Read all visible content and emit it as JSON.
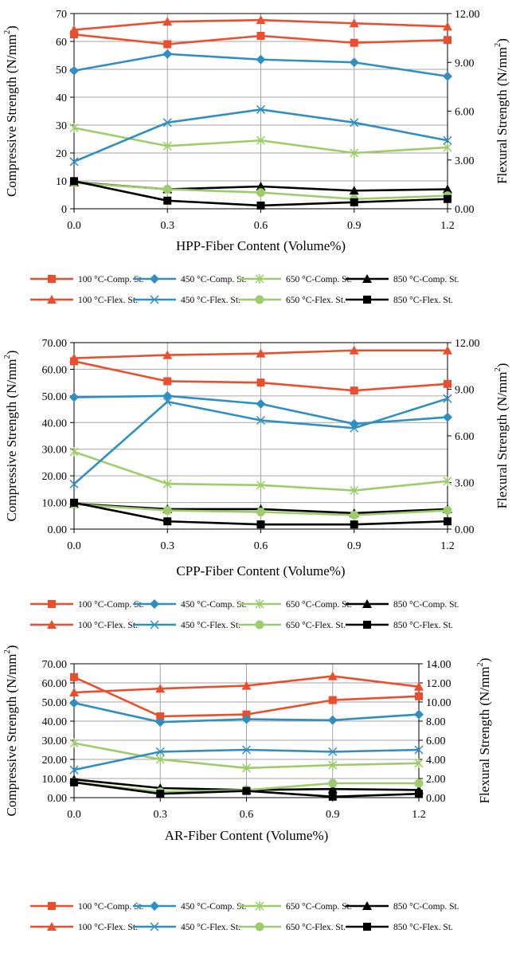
{
  "colors": {
    "c100": "#ea4f2d",
    "c450": "#2f8fc1",
    "c650": "#9dcc6b",
    "c850": "#000000",
    "grid": "#a6a6a6",
    "frame": "#000000"
  },
  "chart_data": [
    {
      "type": "line",
      "x": [
        0.0,
        0.3,
        0.6,
        0.9,
        1.2
      ],
      "x_tick_labels": [
        "0.0",
        "0.3",
        "0.6",
        "0.9",
        "1.2"
      ],
      "xlabel": "HPP-Fiber Content (Volume%)",
      "ylabel_left": "Compressive Strength (N/mm",
      "ylabel_right": "Flexural Strength (N/mm",
      "ylabel_sup": "2",
      "ylabel_close": ")",
      "ylim_left": [
        0,
        70
      ],
      "ylim_right": [
        0,
        12
      ],
      "y_left_ticks": [
        "0",
        "10",
        "20",
        "30",
        "40",
        "50",
        "60",
        "70"
      ],
      "y_right_ticks": [
        "0.00",
        "3.00",
        "6.00",
        "9.00",
        "12.00"
      ],
      "grid": true,
      "series": [
        {
          "name": "100 °C-Comp. St.",
          "axis": "left",
          "color": "c100",
          "marker": "square",
          "values": [
            62.5,
            59.0,
            62.0,
            59.5,
            60.5
          ]
        },
        {
          "name": "450 °C-Comp. St.",
          "axis": "left",
          "color": "c450",
          "marker": "diamond",
          "values": [
            49.5,
            55.5,
            53.5,
            52.5,
            47.5
          ]
        },
        {
          "name": "650 °C-Comp. St.",
          "axis": "left",
          "color": "c650",
          "marker": "asterisk",
          "values": [
            29.0,
            22.5,
            24.5,
            20.0,
            22.0
          ]
        },
        {
          "name": "850 °C-Comp. St.",
          "axis": "left",
          "color": "c850",
          "marker": "triangle",
          "values": [
            9.5,
            7.0,
            8.0,
            6.5,
            7.0
          ]
        },
        {
          "name": "100 °C-Flex. St.",
          "axis": "right",
          "color": "c100",
          "marker": "triangle",
          "values": [
            11.0,
            11.5,
            11.6,
            11.4,
            11.2
          ]
        },
        {
          "name": "450 °C-Flex. St.",
          "axis": "right",
          "color": "c450",
          "marker": "x",
          "values": [
            2.9,
            5.3,
            6.1,
            5.3,
            4.2
          ]
        },
        {
          "name": "650 °C-Flex. St.",
          "axis": "right",
          "color": "c650",
          "marker": "circle",
          "values": [
            1.6,
            1.2,
            1.0,
            0.6,
            0.8
          ]
        },
        {
          "name": "850 °C-Flex. St.",
          "axis": "right",
          "color": "c850",
          "marker": "square",
          "values": [
            1.7,
            0.5,
            0.2,
            0.4,
            0.6
          ]
        }
      ]
    },
    {
      "type": "line",
      "x": [
        0.0,
        0.3,
        0.6,
        0.9,
        1.2
      ],
      "x_tick_labels": [
        "0.0",
        "0.3",
        "0.6",
        "0.9",
        "1.2"
      ],
      "xlabel": "CPP-Fiber Content (Volume%)",
      "ylabel_left": "Compressive Strength (N/mm",
      "ylabel_right": "Flexural Strength (N/mm",
      "ylabel_sup": "2",
      "ylabel_close": ")",
      "ylim_left": [
        0,
        70
      ],
      "ylim_right": [
        0,
        12
      ],
      "y_left_ticks": [
        "0.00",
        "10.00",
        "20.00",
        "30.00",
        "40.00",
        "50.00",
        "60.00",
        "70.00"
      ],
      "y_right_ticks": [
        "0.00",
        "3.00",
        "6.00",
        "9.00",
        "12.00"
      ],
      "grid": true,
      "series": [
        {
          "name": "100 °C-Comp. St.",
          "axis": "left",
          "color": "c100",
          "marker": "square",
          "values": [
            63.0,
            55.5,
            55.0,
            52.0,
            54.5
          ]
        },
        {
          "name": "450 °C-Comp. St.",
          "axis": "left",
          "color": "c450",
          "marker": "diamond",
          "values": [
            49.5,
            50.0,
            47.0,
            39.5,
            42.0
          ]
        },
        {
          "name": "650 °C-Comp. St.",
          "axis": "left",
          "color": "c650",
          "marker": "asterisk",
          "values": [
            29.0,
            17.0,
            16.5,
            14.5,
            18.0
          ]
        },
        {
          "name": "850 °C-Comp. St.",
          "axis": "left",
          "color": "c850",
          "marker": "triangle",
          "values": [
            9.5,
            7.5,
            7.5,
            6.0,
            7.5
          ]
        },
        {
          "name": "100 °C-Flex. St.",
          "axis": "right",
          "color": "c100",
          "marker": "triangle",
          "values": [
            11.0,
            11.2,
            11.3,
            11.5,
            11.5
          ]
        },
        {
          "name": "450 °C-Flex. St.",
          "axis": "right",
          "color": "c450",
          "marker": "x",
          "values": [
            2.9,
            8.2,
            7.0,
            6.5,
            8.4
          ]
        },
        {
          "name": "650 °C-Flex. St.",
          "axis": "right",
          "color": "c650",
          "marker": "circle",
          "values": [
            1.6,
            1.2,
            1.1,
            0.9,
            1.2
          ]
        },
        {
          "name": "850 °C-Flex. St.",
          "axis": "right",
          "color": "c850",
          "marker": "square",
          "values": [
            1.7,
            0.5,
            0.3,
            0.3,
            0.5
          ]
        }
      ]
    },
    {
      "type": "line",
      "x": [
        0.0,
        0.3,
        0.6,
        0.9,
        1.2
      ],
      "x_tick_labels": [
        "0.0",
        "0.3",
        "0.6",
        "0.9",
        "1.2"
      ],
      "xlabel": "AR-Fiber Content (Volume%)",
      "ylabel_left": "Compressive Strength (N/mm",
      "ylabel_right": "Flexural Strength (N/mm",
      "ylabel_sup": "2",
      "ylabel_close": ")",
      "ylim_left": [
        0,
        70
      ],
      "ylim_right": [
        0,
        14
      ],
      "y_left_ticks": [
        "0.00",
        "10.00",
        "20.00",
        "30.00",
        "40.00",
        "50.00",
        "60.00",
        "70.00"
      ],
      "y_right_ticks": [
        "0.00",
        "2.00",
        "4.00",
        "6.00",
        "8.00",
        "10.00",
        "12.00",
        "14.00"
      ],
      "grid": true,
      "series": [
        {
          "name": "100 °C-Comp. St.",
          "axis": "left",
          "color": "c100",
          "marker": "square",
          "values": [
            63.0,
            42.5,
            43.5,
            51.0,
            53.0
          ]
        },
        {
          "name": "450 °C-Comp. St.",
          "axis": "left",
          "color": "c450",
          "marker": "diamond",
          "values": [
            49.5,
            39.5,
            41.0,
            40.5,
            43.5
          ]
        },
        {
          "name": "650 °C-Comp. St.",
          "axis": "left",
          "color": "c650",
          "marker": "asterisk",
          "values": [
            28.5,
            20.0,
            15.5,
            17.0,
            18.0
          ]
        },
        {
          "name": "850 °C-Comp. St.",
          "axis": "left",
          "color": "c850",
          "marker": "triangle",
          "values": [
            9.5,
            5.0,
            4.0,
            4.5,
            4.0
          ]
        },
        {
          "name": "100 °C-Flex. St.",
          "axis": "right",
          "color": "c100",
          "marker": "triangle",
          "values": [
            11.0,
            11.4,
            11.7,
            12.7,
            11.6
          ]
        },
        {
          "name": "450 °C-Flex. St.",
          "axis": "right",
          "color": "c450",
          "marker": "x",
          "values": [
            2.9,
            4.8,
            5.0,
            4.8,
            5.0
          ]
        },
        {
          "name": "650 °C-Flex. St.",
          "axis": "right",
          "color": "c650",
          "marker": "circle",
          "values": [
            1.6,
            0.6,
            0.8,
            1.5,
            1.5
          ]
        },
        {
          "name": "850 °C-Flex. St.",
          "axis": "right",
          "color": "c850",
          "marker": "square",
          "values": [
            1.6,
            0.4,
            0.7,
            0.1,
            0.4
          ]
        }
      ]
    }
  ],
  "legend": {
    "items": [
      "100 °C-Comp. St.",
      "450 °C-Comp. St.",
      "650 °C-Comp. St.",
      "850 °C-Comp. St.",
      "100 °C-Flex. St.",
      "450 °C-Flex. St.",
      "650 °C-Flex. St.",
      "850 °C-Flex. St."
    ],
    "colors": [
      "c100",
      "c450",
      "c650",
      "c850",
      "c100",
      "c450",
      "c650",
      "c850"
    ],
    "markers": [
      "square",
      "diamond",
      "asterisk",
      "triangle",
      "triangle",
      "x",
      "circle",
      "square"
    ],
    "columns": 4,
    "placement": "bottom"
  }
}
